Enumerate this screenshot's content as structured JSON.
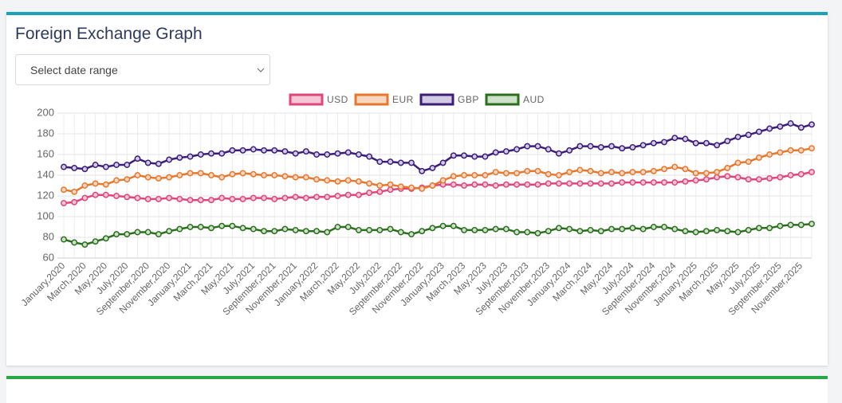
{
  "title": "Foreign Exchange Graph",
  "select_placeholder": "Select date range",
  "chart_data": {
    "type": "line",
    "categories": [
      "January,2020",
      null,
      "March,2020",
      null,
      "May,2020",
      null,
      "July,2020",
      null,
      "September,2020",
      null,
      "November,2020",
      null,
      "January,2021",
      null,
      "March,2021",
      null,
      "May,2021",
      null,
      "July,2021",
      null,
      "September,2021",
      null,
      "November,2021",
      null,
      "January,2022",
      null,
      "March,2022",
      null,
      "May,2022",
      null,
      "July,2022",
      null,
      "September,2022",
      null,
      "November,2022",
      null,
      "January,2023",
      null,
      "March,2023",
      null,
      "May,2023",
      null,
      "July,2023",
      null,
      "September,2023",
      null,
      "November,2023",
      null,
      "January,2024",
      null,
      "March,2024",
      null,
      "May,2024",
      null,
      "July,2024",
      null,
      "September,2024",
      null,
      "November,2024",
      null,
      "January,2025",
      null,
      "March,2025",
      null,
      "May,2025",
      null,
      "July,2025",
      null,
      "September,2025",
      null,
      "November,2025",
      null
    ],
    "series": [
      {
        "name": "USD",
        "color": "#e0457b",
        "fill": "#f4c6d6",
        "values": [
          113,
          114,
          118,
          121,
          121,
          120,
          119,
          118,
          117,
          117,
          118,
          117,
          116,
          116,
          116,
          118,
          117,
          117,
          118,
          118,
          117,
          118,
          119,
          118,
          119,
          119,
          120,
          121,
          121,
          123,
          124,
          126,
          127,
          127,
          128,
          130,
          131,
          131,
          130,
          131,
          131,
          130,
          131,
          131,
          131,
          131,
          132,
          132,
          132,
          132,
          132,
          132,
          132,
          133,
          133,
          133,
          133,
          133,
          133,
          134,
          135,
          136,
          138,
          139,
          138,
          136,
          136,
          137,
          138,
          140,
          141,
          143
        ]
      },
      {
        "name": "EUR",
        "color": "#e8772e",
        "fill": "#f8d7c0",
        "values": [
          126,
          124,
          130,
          132,
          131,
          135,
          136,
          140,
          138,
          137,
          138,
          140,
          142,
          142,
          140,
          138,
          141,
          142,
          141,
          140,
          140,
          139,
          138,
          138,
          136,
          135,
          134,
          135,
          134,
          132,
          130,
          131,
          129,
          128,
          127,
          130,
          135,
          139,
          140,
          140,
          140,
          143,
          142,
          142,
          144,
          144,
          141,
          140,
          143,
          145,
          144,
          142,
          143,
          142,
          143,
          143,
          144,
          146,
          148,
          146,
          142,
          142,
          143,
          147,
          152,
          153,
          157,
          160,
          162,
          164,
          164,
          166
        ]
      },
      {
        "name": "GBP",
        "color": "#3c1e78",
        "fill": "#d3cbe4",
        "values": [
          148,
          147,
          146,
          150,
          148,
          150,
          150,
          156,
          152,
          151,
          155,
          157,
          158,
          160,
          161,
          161,
          164,
          164,
          165,
          164,
          164,
          163,
          161,
          163,
          160,
          160,
          161,
          162,
          160,
          158,
          153,
          153,
          152,
          152,
          144,
          147,
          152,
          159,
          159,
          158,
          158,
          162,
          163,
          165,
          168,
          168,
          165,
          161,
          164,
          168,
          168,
          167,
          168,
          166,
          167,
          169,
          171,
          172,
          176,
          175,
          171,
          171,
          169,
          173,
          177,
          179,
          182,
          185,
          187,
          190,
          186,
          189
        ]
      },
      {
        "name": "AUD",
        "color": "#2a6e1e",
        "fill": "#cde0c8",
        "values": [
          78,
          75,
          73,
          76,
          79,
          83,
          83,
          85,
          85,
          83,
          86,
          88,
          90,
          90,
          89,
          91,
          91,
          89,
          88,
          86,
          86,
          88,
          87,
          86,
          86,
          85,
          90,
          90,
          87,
          87,
          87,
          88,
          85,
          83,
          86,
          89,
          91,
          91,
          87,
          87,
          87,
          88,
          88,
          85,
          85,
          84,
          86,
          89,
          88,
          86,
          87,
          86,
          88,
          88,
          89,
          88,
          90,
          90,
          88,
          86,
          85,
          86,
          87,
          86,
          85,
          87,
          89,
          89,
          91,
          92,
          92,
          93
        ]
      }
    ],
    "ylim": [
      60,
      200
    ],
    "yticks": [
      60,
      80,
      100,
      120,
      140,
      160,
      180,
      200
    ],
    "grid": true,
    "legend": "top"
  }
}
